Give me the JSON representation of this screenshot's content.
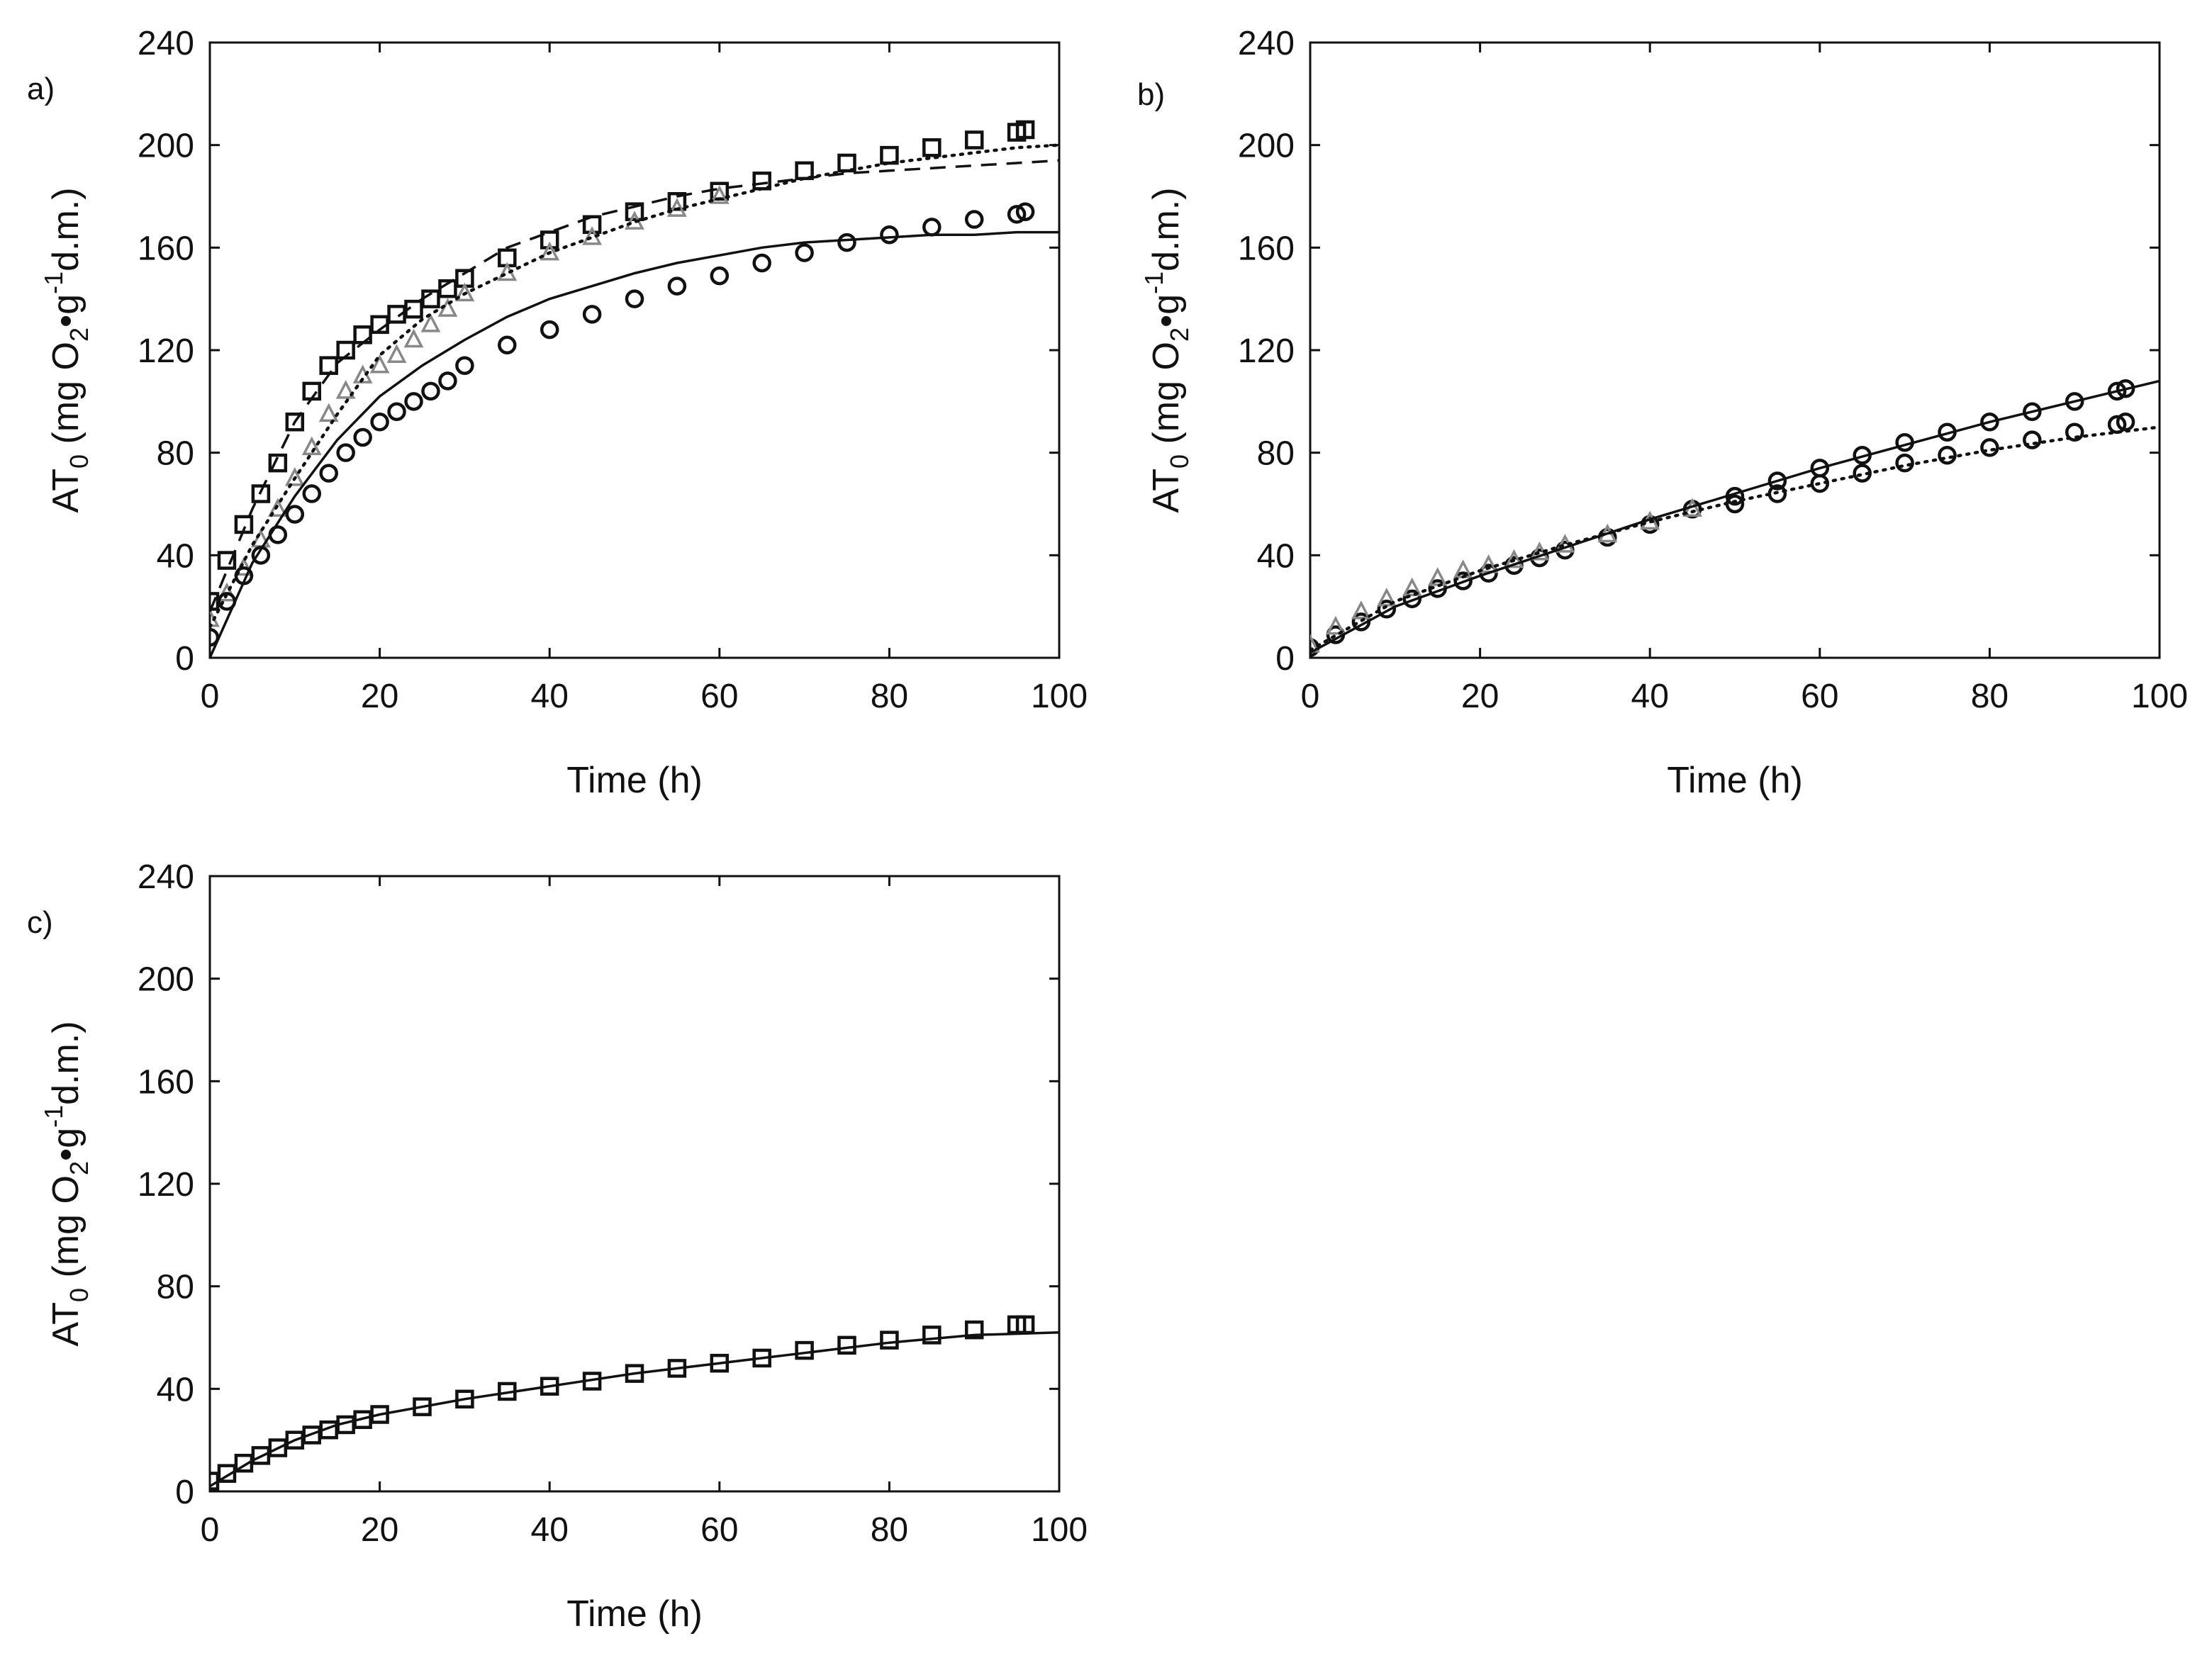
{
  "figure": {
    "background": "#ffffff",
    "ink": "#111111"
  },
  "chart_data": [
    {
      "type": "scatter",
      "panel": "a)",
      "xlabel": "Time (h)",
      "ylabel": {
        "main": "AT",
        "sub": "0",
        "pre": " (mg O",
        "o2sub": "2",
        "dot": "•g",
        "sup": "-1",
        "post": "d.m.)"
      },
      "xlim": [
        0,
        100
      ],
      "ylim": [
        0,
        240
      ],
      "xticks": [
        0,
        20,
        40,
        60,
        80,
        100
      ],
      "yticks": [
        0,
        40,
        80,
        120,
        160,
        200,
        240
      ],
      "grid": false,
      "series": [
        {
          "name": "squares",
          "marker": "square",
          "color": "#111111",
          "x": [
            0,
            2,
            4,
            6,
            8,
            10,
            12,
            14,
            16,
            18,
            20,
            22,
            24,
            26,
            28,
            30,
            35,
            40,
            45,
            50,
            55,
            60,
            65,
            70,
            75,
            80,
            85,
            90,
            95,
            96
          ],
          "y": [
            22,
            38,
            52,
            64,
            76,
            92,
            104,
            114,
            120,
            126,
            130,
            134,
            136,
            140,
            144,
            148,
            156,
            163,
            169,
            174,
            178,
            182,
            186,
            190,
            193,
            196,
            199,
            202,
            205,
            206
          ]
        },
        {
          "name": "triangles",
          "marker": "triangle",
          "color": "#888888",
          "x": [
            0,
            2,
            4,
            6,
            8,
            10,
            12,
            14,
            16,
            18,
            20,
            22,
            24,
            26,
            28,
            30,
            35,
            40,
            45,
            50,
            55,
            60
          ],
          "y": [
            15,
            25,
            35,
            46,
            58,
            70,
            82,
            95,
            104,
            110,
            114,
            118,
            124,
            130,
            136,
            142,
            150,
            158,
            164,
            170,
            175,
            180
          ]
        },
        {
          "name": "circles",
          "marker": "circle",
          "color": "#111111",
          "x": [
            0,
            2,
            4,
            6,
            8,
            10,
            12,
            14,
            16,
            18,
            20,
            22,
            24,
            26,
            28,
            30,
            35,
            40,
            45,
            50,
            55,
            60,
            65,
            70,
            75,
            80,
            85,
            90,
            95,
            96
          ],
          "y": [
            8,
            22,
            32,
            40,
            48,
            56,
            64,
            72,
            80,
            86,
            92,
            96,
            100,
            104,
            108,
            114,
            122,
            128,
            134,
            140,
            145,
            149,
            154,
            158,
            162,
            165,
            168,
            171,
            173,
            174
          ]
        },
        {
          "name": "fit-solid",
          "marker": "none",
          "line": "solid",
          "color": "#111111",
          "x": [
            0,
            5,
            10,
            15,
            20,
            25,
            30,
            35,
            40,
            45,
            50,
            55,
            60,
            65,
            70,
            75,
            80,
            85,
            90,
            95,
            100
          ],
          "y": [
            0,
            37,
            63,
            85,
            102,
            114,
            124,
            133,
            140,
            145,
            150,
            154,
            157,
            160,
            162,
            163,
            164,
            165,
            165,
            166,
            166
          ]
        },
        {
          "name": "fit-dashed",
          "marker": "none",
          "line": "dashed",
          "color": "#111111",
          "x": [
            0,
            5,
            10,
            15,
            20,
            25,
            30,
            35,
            40,
            45,
            50,
            55,
            60,
            65,
            70,
            75,
            80,
            85,
            90,
            95,
            100
          ],
          "y": [
            18,
            58,
            92,
            115,
            128,
            140,
            150,
            160,
            166,
            172,
            176,
            180,
            183,
            185,
            187,
            189,
            190,
            191,
            192,
            193,
            194
          ]
        },
        {
          "name": "fit-dotted",
          "marker": "none",
          "line": "dotted",
          "color": "#111111",
          "x": [
            0,
            5,
            10,
            15,
            20,
            25,
            30,
            35,
            40,
            45,
            50,
            55,
            60,
            65,
            70,
            75,
            80,
            85,
            90,
            95,
            100
          ],
          "y": [
            12,
            44,
            70,
            95,
            118,
            132,
            142,
            150,
            158,
            164,
            170,
            175,
            179,
            183,
            187,
            190,
            193,
            195,
            197,
            199,
            200
          ]
        }
      ]
    },
    {
      "type": "scatter",
      "panel": "b)",
      "xlabel": "Time (h)",
      "ylabel": {
        "main": "AT",
        "sub": "0",
        "pre": " (mg O",
        "o2sub": "2",
        "dot": "•g",
        "sup": "-1",
        "post": "d.m.)"
      },
      "xlim": [
        0,
        100
      ],
      "ylim": [
        0,
        240
      ],
      "xticks": [
        0,
        20,
        40,
        60,
        80,
        100
      ],
      "yticks": [
        0,
        40,
        80,
        120,
        160,
        200,
        240
      ],
      "grid": false,
      "series": [
        {
          "name": "circles-upper",
          "marker": "circle",
          "color": "#111111",
          "x": [
            0,
            3,
            6,
            9,
            12,
            15,
            18,
            21,
            24,
            27,
            30,
            35,
            40,
            45,
            50,
            55,
            60,
            65,
            70,
            75,
            80,
            85,
            90,
            95,
            96
          ],
          "y": [
            4,
            9,
            14,
            19,
            23,
            27,
            30,
            33,
            36,
            39,
            42,
            47,
            52,
            58,
            63,
            69,
            74,
            79,
            84,
            88,
            92,
            96,
            100,
            104,
            105
          ]
        },
        {
          "name": "triangles",
          "marker": "triangle",
          "color": "#888888",
          "x": [
            0,
            3,
            6,
            9,
            12,
            15,
            18,
            21,
            24,
            27,
            30,
            35,
            40,
            45
          ],
          "y": [
            5,
            12,
            18,
            23,
            27,
            31,
            34,
            36,
            38,
            41,
            44,
            48,
            53,
            58
          ]
        },
        {
          "name": "circles-lower",
          "marker": "circle",
          "color": "#111111",
          "x": [
            50,
            55,
            60,
            65,
            70,
            75,
            80,
            85,
            90,
            95,
            96
          ],
          "y": [
            60,
            64,
            68,
            72,
            76,
            79,
            82,
            85,
            88,
            91,
            92
          ]
        },
        {
          "name": "fit-solid",
          "marker": "none",
          "line": "solid",
          "color": "#111111",
          "x": [
            0,
            10,
            20,
            30,
            40,
            50,
            60,
            70,
            80,
            90,
            100
          ],
          "y": [
            2,
            20,
            32,
            43,
            54,
            64,
            74,
            83,
            92,
            100,
            108
          ]
        },
        {
          "name": "fit-dotted",
          "marker": "none",
          "line": "dotted",
          "color": "#111111",
          "x": [
            0,
            10,
            20,
            30,
            40,
            50,
            60,
            70,
            80,
            90,
            100
          ],
          "y": [
            3,
            22,
            34,
            44,
            53,
            61,
            68,
            75,
            81,
            86,
            90
          ]
        }
      ]
    },
    {
      "type": "scatter",
      "panel": "c)",
      "xlabel": "Time (h)",
      "ylabel": {
        "main": "AT",
        "sub": "0",
        "pre": " (mg O",
        "o2sub": "2",
        "dot": "•g",
        "sup": "-1",
        "post": "d.m.)"
      },
      "xlim": [
        0,
        100
      ],
      "ylim": [
        0,
        240
      ],
      "xticks": [
        0,
        20,
        40,
        60,
        80,
        100
      ],
      "yticks": [
        0,
        40,
        80,
        120,
        160,
        200,
        240
      ],
      "grid": false,
      "series": [
        {
          "name": "squares",
          "marker": "square",
          "color": "#111111",
          "x": [
            0,
            2,
            4,
            6,
            8,
            10,
            12,
            14,
            16,
            18,
            20,
            25,
            30,
            35,
            40,
            45,
            50,
            55,
            60,
            65,
            70,
            75,
            80,
            85,
            90,
            95,
            96
          ],
          "y": [
            4,
            7,
            11,
            14,
            17,
            20,
            22,
            24,
            26,
            28,
            30,
            33,
            36,
            39,
            41,
            43,
            46,
            48,
            50,
            52,
            55,
            57,
            59,
            61,
            63,
            65,
            65
          ]
        },
        {
          "name": "fit-solid",
          "marker": "none",
          "line": "solid",
          "color": "#111111",
          "x": [
            0,
            5,
            10,
            15,
            20,
            25,
            30,
            40,
            50,
            60,
            70,
            80,
            90,
            100
          ],
          "y": [
            2,
            12,
            20,
            26,
            30,
            33,
            36,
            41,
            46,
            50,
            54,
            58,
            61,
            62
          ]
        }
      ]
    }
  ]
}
